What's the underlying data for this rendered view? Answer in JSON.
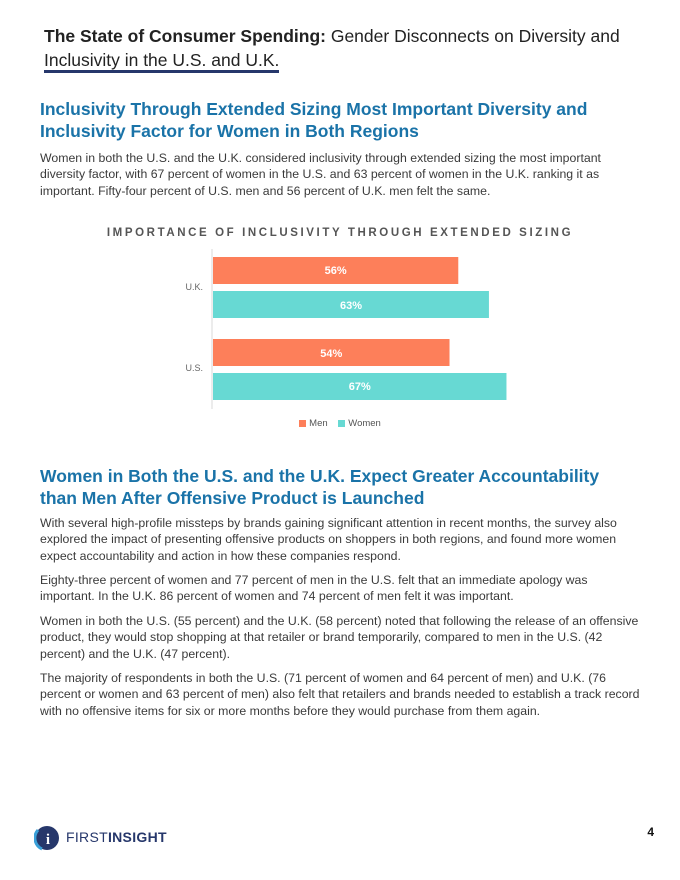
{
  "header": {
    "title_bold": "The State of Consumer Spending:",
    "title_rest": " Gender Disconnects on Diversity and Inclusivity in the U.S. and U.K."
  },
  "section1": {
    "heading": "Inclusivity Through Extended Sizing Most Important Diversity and Inclusivity Factor for Women in Both Regions",
    "paragraph": "Women in both the U.S. and the U.K. considered inclusivity through extended sizing the most important diversity factor, with 67 percent of women in the U.S. and 63 percent of women in the U.K. ranking it as important.  Fifty-four percent of U.S. men and 56 percent of U.K. men felt the same."
  },
  "chart_data": {
    "type": "bar",
    "orientation": "horizontal",
    "title": "IMPORTANCE OF INCLUSIVITY THROUGH EXTENDED SIZING",
    "categories": [
      "U.K.",
      "U.S."
    ],
    "series": [
      {
        "name": "Men",
        "values": [
          56,
          54
        ],
        "labels": [
          "56%",
          "54%"
        ],
        "color": "#fd7f5a"
      },
      {
        "name": "Women",
        "values": [
          63,
          67
        ],
        "labels": [
          "63%",
          "67%"
        ],
        "color": "#67d9d3"
      }
    ],
    "xlim": [
      0,
      100
    ],
    "legend": "bottom-center",
    "grid": false
  },
  "section2": {
    "heading": "Women in Both the U.S. and the U.K. Expect Greater Accountability than Men After Offensive Product is Launched",
    "paragraphs": [
      "With several high-profile missteps by brands gaining significant attention in recent months, the survey also explored the impact of presenting offensive products on shoppers in both regions, and found more women expect accountability and action in how these companies respond.",
      "Eighty-three percent of women and 77 percent of men in the U.S. felt that an immediate apology was important.  In the U.K. 86 percent of women and 74 percent of men felt it was important.",
      "Women in both the U.S. (55 percent) and the U.K. (58 percent) noted that following the release of an offensive product, they would stop shopping at that retailer or brand temporarily, compared to men in the U.S. (42 percent) and the U.K. (47 percent).",
      "The majority of respondents in both the U.S. (71 percent of women and 64 percent of men) and U.K. (76 percent or women and 63 percent of men) also felt that retailers and brands needed to establish a track record with no offensive items for six or more months before they would purchase from them again."
    ]
  },
  "footer": {
    "logo_first": "FIRST",
    "logo_second": "INSIGHT",
    "logo_icon_letter": "i",
    "page_number": "4"
  }
}
